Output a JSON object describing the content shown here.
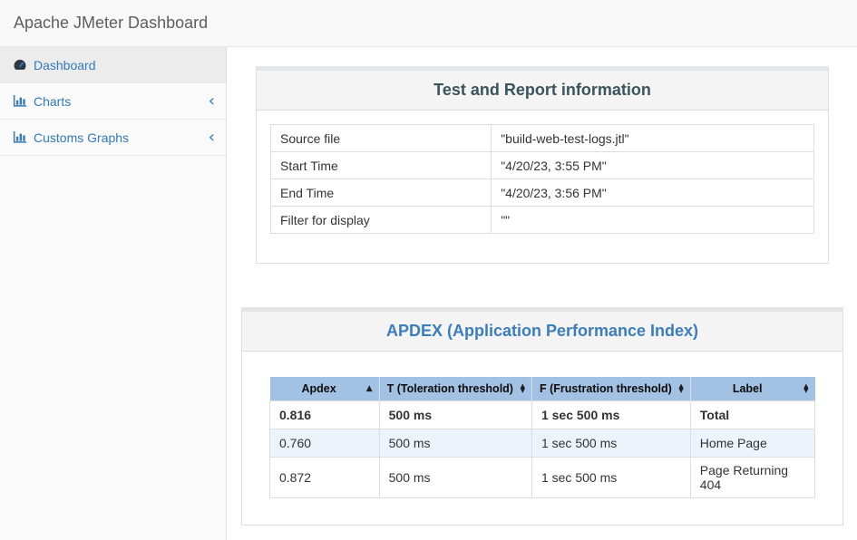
{
  "navbar": {
    "title": "Apache JMeter Dashboard"
  },
  "sidebar": {
    "chevron_glyph": "‹",
    "items": [
      {
        "label": "Dashboard",
        "icon": "tachometer-icon",
        "active": true,
        "chevron": false
      },
      {
        "label": "Charts",
        "icon": "bar-chart-icon",
        "active": false,
        "chevron": true
      },
      {
        "label": "Customs Graphs",
        "icon": "bar-chart-icon",
        "active": false,
        "chevron": true
      }
    ]
  },
  "info_panel": {
    "title": "Test and Report information",
    "rows": [
      {
        "label": "Source file",
        "value": "\"build-web-test-logs.jtl\""
      },
      {
        "label": "Start Time",
        "value": "\"4/20/23, 3:55 PM\""
      },
      {
        "label": "End Time",
        "value": "\"4/20/23, 3:56 PM\""
      },
      {
        "label": "Filter for display",
        "value": "\"\""
      }
    ]
  },
  "apdex_panel": {
    "title": "APDEX (Application Performance Index)",
    "sort_glyphs": {
      "asc": "▲",
      "up": "▲",
      "down": "▼"
    },
    "columns": [
      {
        "label": "Apdex",
        "sort": "asc",
        "width": "21.7%"
      },
      {
        "label": "T (Toleration threshold)",
        "sort": "both",
        "width": "26.5%"
      },
      {
        "label": "F (Frustration threshold)",
        "sort": "both",
        "width": "27.3%"
      },
      {
        "label": "Label",
        "sort": "both",
        "width": "24.5%"
      }
    ],
    "rows": [
      {
        "cells": [
          "0.816",
          "500 ms",
          "1 sec 500 ms",
          "Total"
        ],
        "emphasis": true
      },
      {
        "cells": [
          "0.760",
          "500 ms",
          "1 sec 500 ms",
          "Home Page"
        ],
        "emphasis": false
      },
      {
        "cells": [
          "0.872",
          "500 ms",
          "1 sec 500 ms",
          "Page Returning 404"
        ],
        "emphasis": false
      }
    ]
  },
  "colors": {
    "link": "#337ab7",
    "apdex_head_bg": "#a3c2e3",
    "info_title": "#3b545c",
    "apdex_title": "#3b7dbd",
    "stripe": "#edf3fa"
  }
}
